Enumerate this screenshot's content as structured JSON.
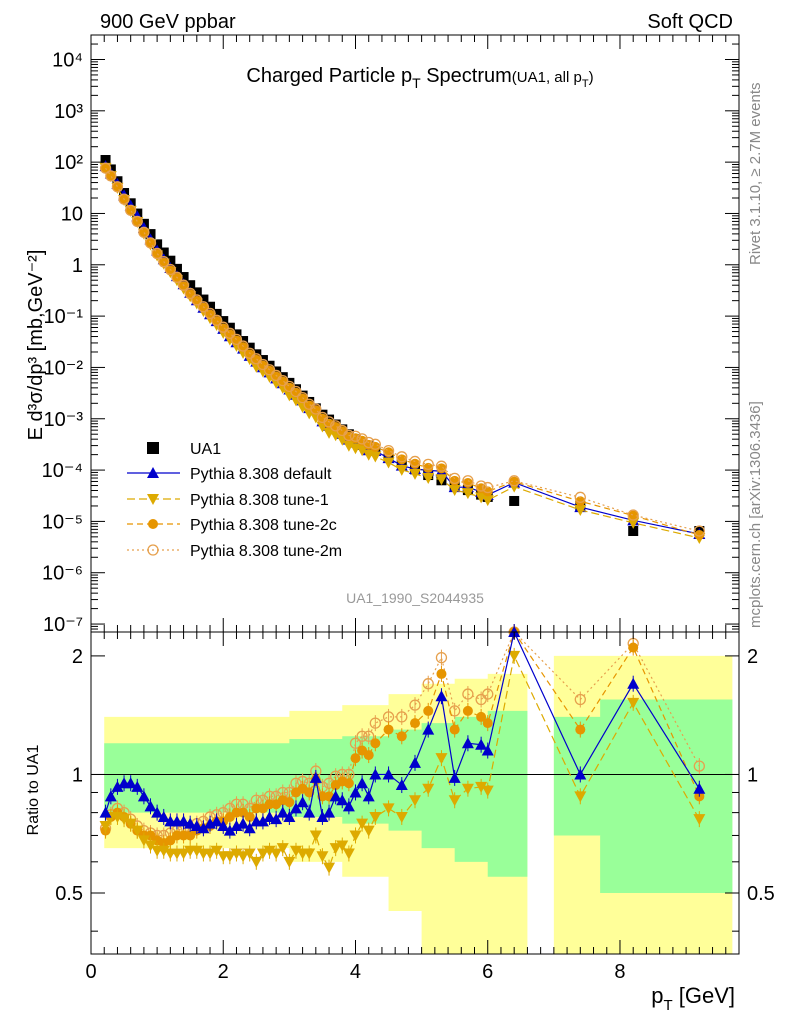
{
  "header": {
    "left": "900 GeV ppbar",
    "right": "Soft QCD"
  },
  "side_labels": {
    "top": "Rivet 3.1.10, ≥ 2.7M events",
    "bottom": "mcplots.cern.ch [arXiv:1306.3436]"
  },
  "colors": {
    "data": "#000000",
    "default": "#0000cc",
    "tune1": "#ddaa00",
    "tune2c": "#e69500",
    "tune2m": "#e6a04d",
    "band_inner": "#99ff99",
    "band_outer": "#ffff99"
  },
  "chart_data": [
    {
      "type": "scatter",
      "title": "Charged Particle p",
      "title_sub": "T",
      "title_suffix": " Spectrum",
      "title_note": "(UA1, all p",
      "title_note_sub": "T",
      "title_note_end": ")",
      "ylabel": "E d³σ/dp³ [mb,GeV⁻²]",
      "xlim": [
        0,
        9.8
      ],
      "ylim": [
        7e-08,
        30000.0
      ],
      "yscale": "log",
      "watermark": "UA1_1990_S2044935",
      "legend_position": "bottom-left",
      "series": [
        {
          "name": "UA1",
          "style": "marker"
        },
        {
          "name": "Pythia 8.308 default",
          "style": "line-marker"
        },
        {
          "name": "Pythia 8.308 tune-1",
          "style": "dash"
        },
        {
          "name": "Pythia 8.308 tune-2c",
          "style": "dash"
        },
        {
          "name": "Pythia 8.308 tune-2m",
          "style": "dot"
        }
      ],
      "spectrum_points_approx": [
        [
          0.22,
          110
        ],
        [
          0.5,
          25
        ],
        [
          1.0,
          2.5
        ],
        [
          1.5,
          0.4
        ],
        [
          2.0,
          0.08
        ],
        [
          2.5,
          0.018
        ],
        [
          3.0,
          0.005
        ],
        [
          3.5,
          0.0012
        ],
        [
          4.0,
          0.0004
        ],
        [
          4.5,
          0.00018
        ],
        [
          5.0,
          9e-05
        ],
        [
          5.5,
          5e-05
        ],
        [
          6.0,
          3e-05
        ],
        [
          6.4,
          2.5e-05
        ],
        [
          7.4,
          2e-05
        ],
        [
          8.2,
          6.5e-06
        ],
        [
          9.2,
          6.5e-06
        ]
      ]
    },
    {
      "type": "line",
      "xlabel": "p",
      "xlabel_sub": "T",
      "xlabel_suffix": " [GeV]",
      "ylabel": "Ratio to UA1",
      "xlim": [
        0,
        9.8
      ],
      "ylim": [
        0.35,
        2.3
      ],
      "yscale": "log",
      "x_ticks": [
        0,
        2,
        4,
        6,
        8
      ],
      "y_ticks": [
        0.5,
        1,
        2
      ],
      "reference": 1,
      "inner_band": [
        [
          0.2,
          0.8,
          1.2
        ],
        [
          2.0,
          0.8,
          1.2
        ],
        [
          3.0,
          0.78,
          1.23
        ],
        [
          3.8,
          0.75,
          1.25
        ],
        [
          4.5,
          0.72,
          1.3
        ],
        [
          5.0,
          0.65,
          1.35
        ],
        [
          5.5,
          0.6,
          1.4
        ],
        [
          6.0,
          0.55,
          1.45
        ],
        [
          6.6,
          0.55,
          1.45
        ]
      ],
      "outer_band": [
        [
          0.2,
          0.65,
          1.4
        ],
        [
          2.0,
          0.65,
          1.4
        ],
        [
          3.0,
          0.6,
          1.45
        ],
        [
          3.8,
          0.55,
          1.5
        ],
        [
          4.5,
          0.45,
          1.6
        ],
        [
          5.0,
          0.35,
          1.7
        ],
        [
          5.5,
          0.3,
          1.75
        ],
        [
          6.0,
          0.3,
          1.8
        ],
        [
          6.6,
          0.3,
          1.8
        ]
      ],
      "outer_band_right": [
        [
          7.0,
          0.35,
          2.0
        ],
        [
          9.7,
          0.35,
          2.0
        ]
      ],
      "inner_band_right": [
        [
          7.0,
          0.7,
          1.4
        ],
        [
          7.7,
          0.7,
          1.4
        ],
        [
          7.7,
          0.5,
          1.55
        ],
        [
          9.7,
          0.5,
          1.55
        ]
      ],
      "series": [
        {
          "name": "Pythia 8.308 default",
          "x": [
            0.22,
            0.3,
            0.4,
            0.5,
            0.6,
            0.7,
            0.8,
            0.9,
            1.0,
            1.1,
            1.2,
            1.3,
            1.4,
            1.5,
            1.6,
            1.7,
            1.8,
            1.9,
            2.0,
            2.1,
            2.2,
            2.3,
            2.4,
            2.5,
            2.6,
            2.7,
            2.8,
            2.9,
            3.0,
            3.1,
            3.2,
            3.3,
            3.4,
            3.5,
            3.6,
            3.7,
            3.8,
            3.9,
            4.0,
            4.1,
            4.2,
            4.3,
            4.5,
            4.7,
            4.9,
            5.1,
            5.3,
            5.5,
            5.7,
            5.9,
            6.0,
            6.4,
            7.4,
            8.2,
            9.2
          ],
          "y": [
            0.8,
            0.88,
            0.93,
            0.95,
            0.95,
            0.93,
            0.88,
            0.83,
            0.8,
            0.78,
            0.76,
            0.76,
            0.76,
            0.75,
            0.74,
            0.73,
            0.75,
            0.76,
            0.74,
            0.72,
            0.74,
            0.75,
            0.73,
            0.76,
            0.76,
            0.78,
            0.77,
            0.8,
            0.78,
            0.82,
            0.85,
            0.8,
            0.98,
            0.78,
            0.8,
            0.88,
            0.86,
            0.83,
            0.9,
            0.95,
            0.88,
            1.0,
            1.0,
            0.94,
            1.07,
            1.3,
            1.58,
            0.98,
            1.2,
            1.19,
            1.15,
            2.4,
            1.0,
            1.7,
            0.92
          ]
        },
        {
          "name": "Pythia 8.308 tune-1",
          "x": [
            0.22,
            0.3,
            0.4,
            0.5,
            0.6,
            0.7,
            0.8,
            0.9,
            1.0,
            1.1,
            1.2,
            1.3,
            1.4,
            1.5,
            1.6,
            1.7,
            1.8,
            1.9,
            2.0,
            2.1,
            2.2,
            2.3,
            2.4,
            2.5,
            2.6,
            2.7,
            2.8,
            2.9,
            3.0,
            3.1,
            3.2,
            3.3,
            3.4,
            3.5,
            3.6,
            3.7,
            3.8,
            3.9,
            4.0,
            4.1,
            4.2,
            4.3,
            4.5,
            4.7,
            4.9,
            5.1,
            5.3,
            5.5,
            5.7,
            5.9,
            6.0,
            6.4,
            7.4,
            8.2,
            9.2
          ],
          "y": [
            0.74,
            0.78,
            0.78,
            0.77,
            0.75,
            0.72,
            0.68,
            0.66,
            0.64,
            0.64,
            0.63,
            0.63,
            0.63,
            0.64,
            0.64,
            0.63,
            0.63,
            0.64,
            0.62,
            0.62,
            0.63,
            0.62,
            0.63,
            0.6,
            0.63,
            0.64,
            0.63,
            0.65,
            0.6,
            0.64,
            0.63,
            0.63,
            0.7,
            0.62,
            0.58,
            0.65,
            0.66,
            0.63,
            0.7,
            0.75,
            0.72,
            0.78,
            0.82,
            0.78,
            0.86,
            0.92,
            1.1,
            0.86,
            0.92,
            0.93,
            0.91,
            2.0,
            0.88,
            1.52,
            0.77
          ]
        },
        {
          "name": "Pythia 8.308 tune-2c",
          "x": [
            0.22,
            0.3,
            0.4,
            0.5,
            0.6,
            0.7,
            0.8,
            0.9,
            1.0,
            1.1,
            1.2,
            1.3,
            1.4,
            1.5,
            1.6,
            1.7,
            1.8,
            1.9,
            2.0,
            2.1,
            2.2,
            2.3,
            2.4,
            2.5,
            2.6,
            2.7,
            2.8,
            2.9,
            3.0,
            3.1,
            3.2,
            3.3,
            3.4,
            3.5,
            3.6,
            3.7,
            3.8,
            3.9,
            4.0,
            4.1,
            4.2,
            4.3,
            4.5,
            4.7,
            4.9,
            5.1,
            5.3,
            5.5,
            5.7,
            5.9,
            6.0,
            6.4,
            7.4,
            8.2,
            9.2
          ],
          "y": [
            0.72,
            0.78,
            0.8,
            0.78,
            0.75,
            0.72,
            0.7,
            0.7,
            0.68,
            0.67,
            0.68,
            0.7,
            0.7,
            0.7,
            0.72,
            0.73,
            0.74,
            0.76,
            0.76,
            0.78,
            0.8,
            0.8,
            0.78,
            0.82,
            0.82,
            0.84,
            0.84,
            0.86,
            0.85,
            0.9,
            0.92,
            0.9,
            0.97,
            0.88,
            0.88,
            0.94,
            0.96,
            0.95,
            1.1,
            1.15,
            1.12,
            1.2,
            1.3,
            1.25,
            1.35,
            1.45,
            1.8,
            1.3,
            1.45,
            1.4,
            1.35,
            2.5,
            1.3,
            2.1,
            0.88
          ]
        },
        {
          "name": "Pythia 8.308 tune-2m",
          "x": [
            0.22,
            0.3,
            0.4,
            0.5,
            0.6,
            0.7,
            0.8,
            0.9,
            1.0,
            1.1,
            1.2,
            1.3,
            1.4,
            1.5,
            1.6,
            1.7,
            1.8,
            1.9,
            2.0,
            2.1,
            2.2,
            2.3,
            2.4,
            2.5,
            2.6,
            2.7,
            2.8,
            2.9,
            3.0,
            3.1,
            3.2,
            3.3,
            3.4,
            3.5,
            3.6,
            3.7,
            3.8,
            3.9,
            4.0,
            4.1,
            4.2,
            4.3,
            4.5,
            4.7,
            4.9,
            5.1,
            5.3,
            5.5,
            5.7,
            5.9,
            6.0,
            6.4,
            7.4,
            8.2,
            9.2
          ],
          "y": [
            0.73,
            0.79,
            0.82,
            0.8,
            0.77,
            0.74,
            0.72,
            0.71,
            0.7,
            0.7,
            0.71,
            0.72,
            0.73,
            0.73,
            0.75,
            0.76,
            0.78,
            0.79,
            0.8,
            0.82,
            0.84,
            0.84,
            0.82,
            0.86,
            0.86,
            0.88,
            0.88,
            0.9,
            0.9,
            0.95,
            0.96,
            0.95,
            1.02,
            0.93,
            0.95,
            0.99,
            1.0,
            1.0,
            1.2,
            1.25,
            1.25,
            1.35,
            1.4,
            1.4,
            1.5,
            1.7,
            1.98,
            1.45,
            1.6,
            1.55,
            1.6,
            2.6,
            1.55,
            2.15,
            1.05
          ]
        }
      ]
    }
  ]
}
